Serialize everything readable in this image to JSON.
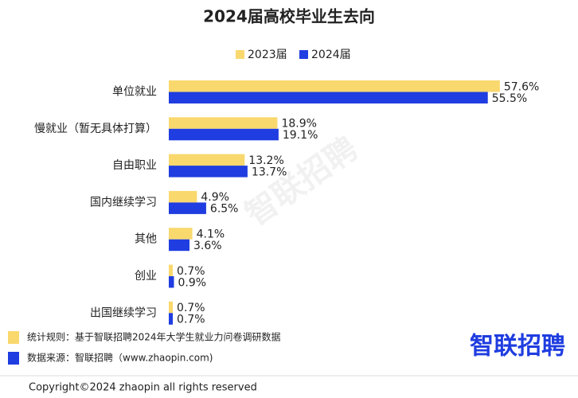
{
  "chart_data": {
    "type": "bar",
    "orientation": "horizontal",
    "title": "2024届高校毕业生去向",
    "categories": [
      "单位就业",
      "慢就业（暂无具体打算）",
      "自由职业",
      "国内继续学习",
      "其他",
      "创业",
      "出国继续学习"
    ],
    "series": [
      {
        "name": "2023届",
        "color": "#f9d86e",
        "values": [
          57.6,
          18.9,
          13.2,
          4.9,
          4.1,
          0.7,
          0.7
        ],
        "value_labels": [
          "57.6%",
          "18.9%",
          "13.2%",
          "4.9%",
          "4.1%",
          "0.7%",
          "0.7%"
        ]
      },
      {
        "name": "2024届",
        "color": "#1f3de0",
        "values": [
          55.5,
          19.1,
          13.7,
          6.5,
          3.6,
          0.9,
          0.7
        ],
        "value_labels": [
          "55.5%",
          "19.1%",
          "13.7%",
          "6.5%",
          "3.6%",
          "0.9%",
          "0.7%"
        ]
      }
    ],
    "legend": "top"
  },
  "watermark": "智联招聘",
  "notes": [
    "统计规则：基于智联招聘2024年大学生就业力问卷调研数据",
    "数据来源：智联招聘（www.zhaopin.com)"
  ],
  "logo": "智联招聘",
  "copyright": "Copyright©2024 zhaopin all rights reserved"
}
